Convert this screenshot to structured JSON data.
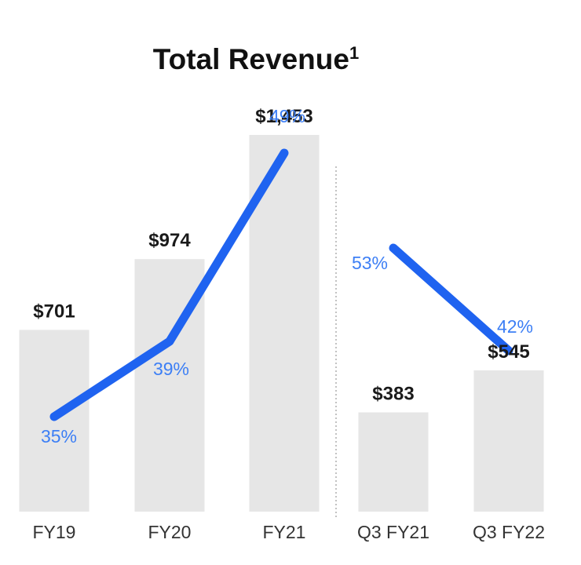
{
  "chart_data": {
    "type": "bar",
    "title": "Total Revenue",
    "title_superscript": "1",
    "categories": [
      "FY19",
      "FY20",
      "FY21",
      "Q3 FY21",
      "Q3 FY22"
    ],
    "values": [
      701,
      974,
      1453,
      383,
      545
    ],
    "value_labels": [
      "$701",
      "$974",
      "$1,453",
      "$383",
      "$545"
    ],
    "growth_labels": [
      "35%",
      "39%",
      "49%",
      "53%",
      "42%"
    ],
    "growth": [
      35,
      39,
      49,
      53,
      42
    ],
    "groups": [
      {
        "categories": [
          "FY19",
          "FY20",
          "FY21"
        ],
        "growth_range": [
          35,
          49
        ]
      },
      {
        "categories": [
          "Q3 FY21",
          "Q3 FY22"
        ],
        "growth_range": [
          42,
          53
        ]
      }
    ],
    "ylim": [
      0,
      1580
    ],
    "grid": false,
    "divider_between": [
      "FY21",
      "Q3 FY21"
    ],
    "colors": {
      "bar": "#e6e6e6",
      "line": "#1f63f0",
      "growth_text": "#3d7ff5",
      "value_text": "#1a1a1a"
    }
  }
}
